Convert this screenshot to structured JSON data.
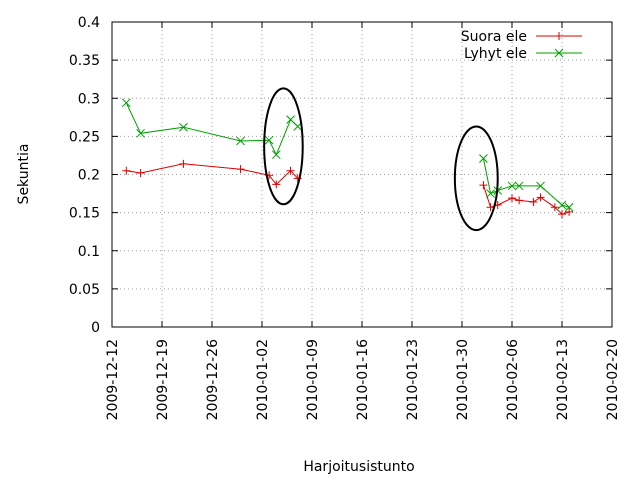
{
  "chart_data": {
    "type": "line",
    "xlabel": "Harjoitusistunto",
    "ylabel": "Sekuntia",
    "x_type": "date",
    "xlim": [
      "2009-12-12",
      "2010-02-20"
    ],
    "ylim": [
      0,
      0.4
    ],
    "x_ticks": [
      "2009-12-12",
      "2009-12-19",
      "2009-12-26",
      "2010-01-02",
      "2010-01-09",
      "2010-01-16",
      "2010-01-23",
      "2010-01-30",
      "2010-02-06",
      "2010-02-13",
      "2010-02-20"
    ],
    "y_ticks": [
      0,
      0.05,
      0.1,
      0.15,
      0.2,
      0.25,
      0.3,
      0.35,
      0.4
    ],
    "y_tick_labels": [
      "0",
      "0.05",
      "0.1",
      "0.15",
      "0.2",
      "0.25",
      "0.3",
      "0.35",
      "0.4"
    ],
    "grid": true,
    "legend_position": "top-right",
    "series": [
      {
        "name": "Suora ele",
        "color": "#e00000",
        "marker": "plus",
        "segments": [
          [
            {
              "x": "2009-12-14",
              "y": 0.205
            },
            {
              "x": "2009-12-16",
              "y": 0.202
            },
            {
              "x": "2009-12-22",
              "y": 0.214
            },
            {
              "x": "2009-12-30",
              "y": 0.207
            },
            {
              "x": "2010-01-03",
              "y": 0.199
            },
            {
              "x": "2010-01-04",
              "y": 0.187
            },
            {
              "x": "2010-01-06",
              "y": 0.205
            },
            {
              "x": "2010-01-07",
              "y": 0.195
            }
          ],
          [
            {
              "x": "2010-02-02",
              "y": 0.186
            },
            {
              "x": "2010-02-03",
              "y": 0.157
            },
            {
              "x": "2010-02-04",
              "y": 0.16
            },
            {
              "x": "2010-02-06",
              "y": 0.169
            },
            {
              "x": "2010-02-07",
              "y": 0.166
            },
            {
              "x": "2010-02-09",
              "y": 0.164
            },
            {
              "x": "2010-02-10",
              "y": 0.17
            },
            {
              "x": "2010-02-12",
              "y": 0.157
            },
            {
              "x": "2010-02-13",
              "y": 0.148
            },
            {
              "x": "2010-02-14",
              "y": 0.151
            }
          ]
        ]
      },
      {
        "name": "Lyhyt ele",
        "color": "#00a000",
        "marker": "cross",
        "segments": [
          [
            {
              "x": "2009-12-14",
              "y": 0.294
            },
            {
              "x": "2009-12-16",
              "y": 0.254
            },
            {
              "x": "2009-12-22",
              "y": 0.262
            },
            {
              "x": "2009-12-30",
              "y": 0.244
            },
            {
              "x": "2010-01-03",
              "y": 0.245
            },
            {
              "x": "2010-01-04",
              "y": 0.226
            },
            {
              "x": "2010-01-06",
              "y": 0.272
            },
            {
              "x": "2010-01-07",
              "y": 0.263
            }
          ],
          [
            {
              "x": "2010-02-02",
              "y": 0.221
            },
            {
              "x": "2010-02-03",
              "y": 0.175
            },
            {
              "x": "2010-02-04",
              "y": 0.179
            },
            {
              "x": "2010-02-06",
              "y": 0.185
            },
            {
              "x": "2010-02-07",
              "y": 0.185
            },
            {
              "x": "2010-02-10",
              "y": 0.185
            },
            {
              "x": "2010-02-13",
              "y": 0.16
            },
            {
              "x": "2010-02-14",
              "y": 0.157
            }
          ]
        ]
      }
    ],
    "annotations": [
      {
        "type": "ellipse",
        "x_center": "2010-01-05",
        "y_center": 0.237,
        "x_radius_days": 2.7,
        "y_radius": 0.076
      },
      {
        "type": "ellipse",
        "x_center": "2010-02-01",
        "y_center": 0.195,
        "x_radius_days": 3.0,
        "y_radius": 0.068
      }
    ]
  }
}
